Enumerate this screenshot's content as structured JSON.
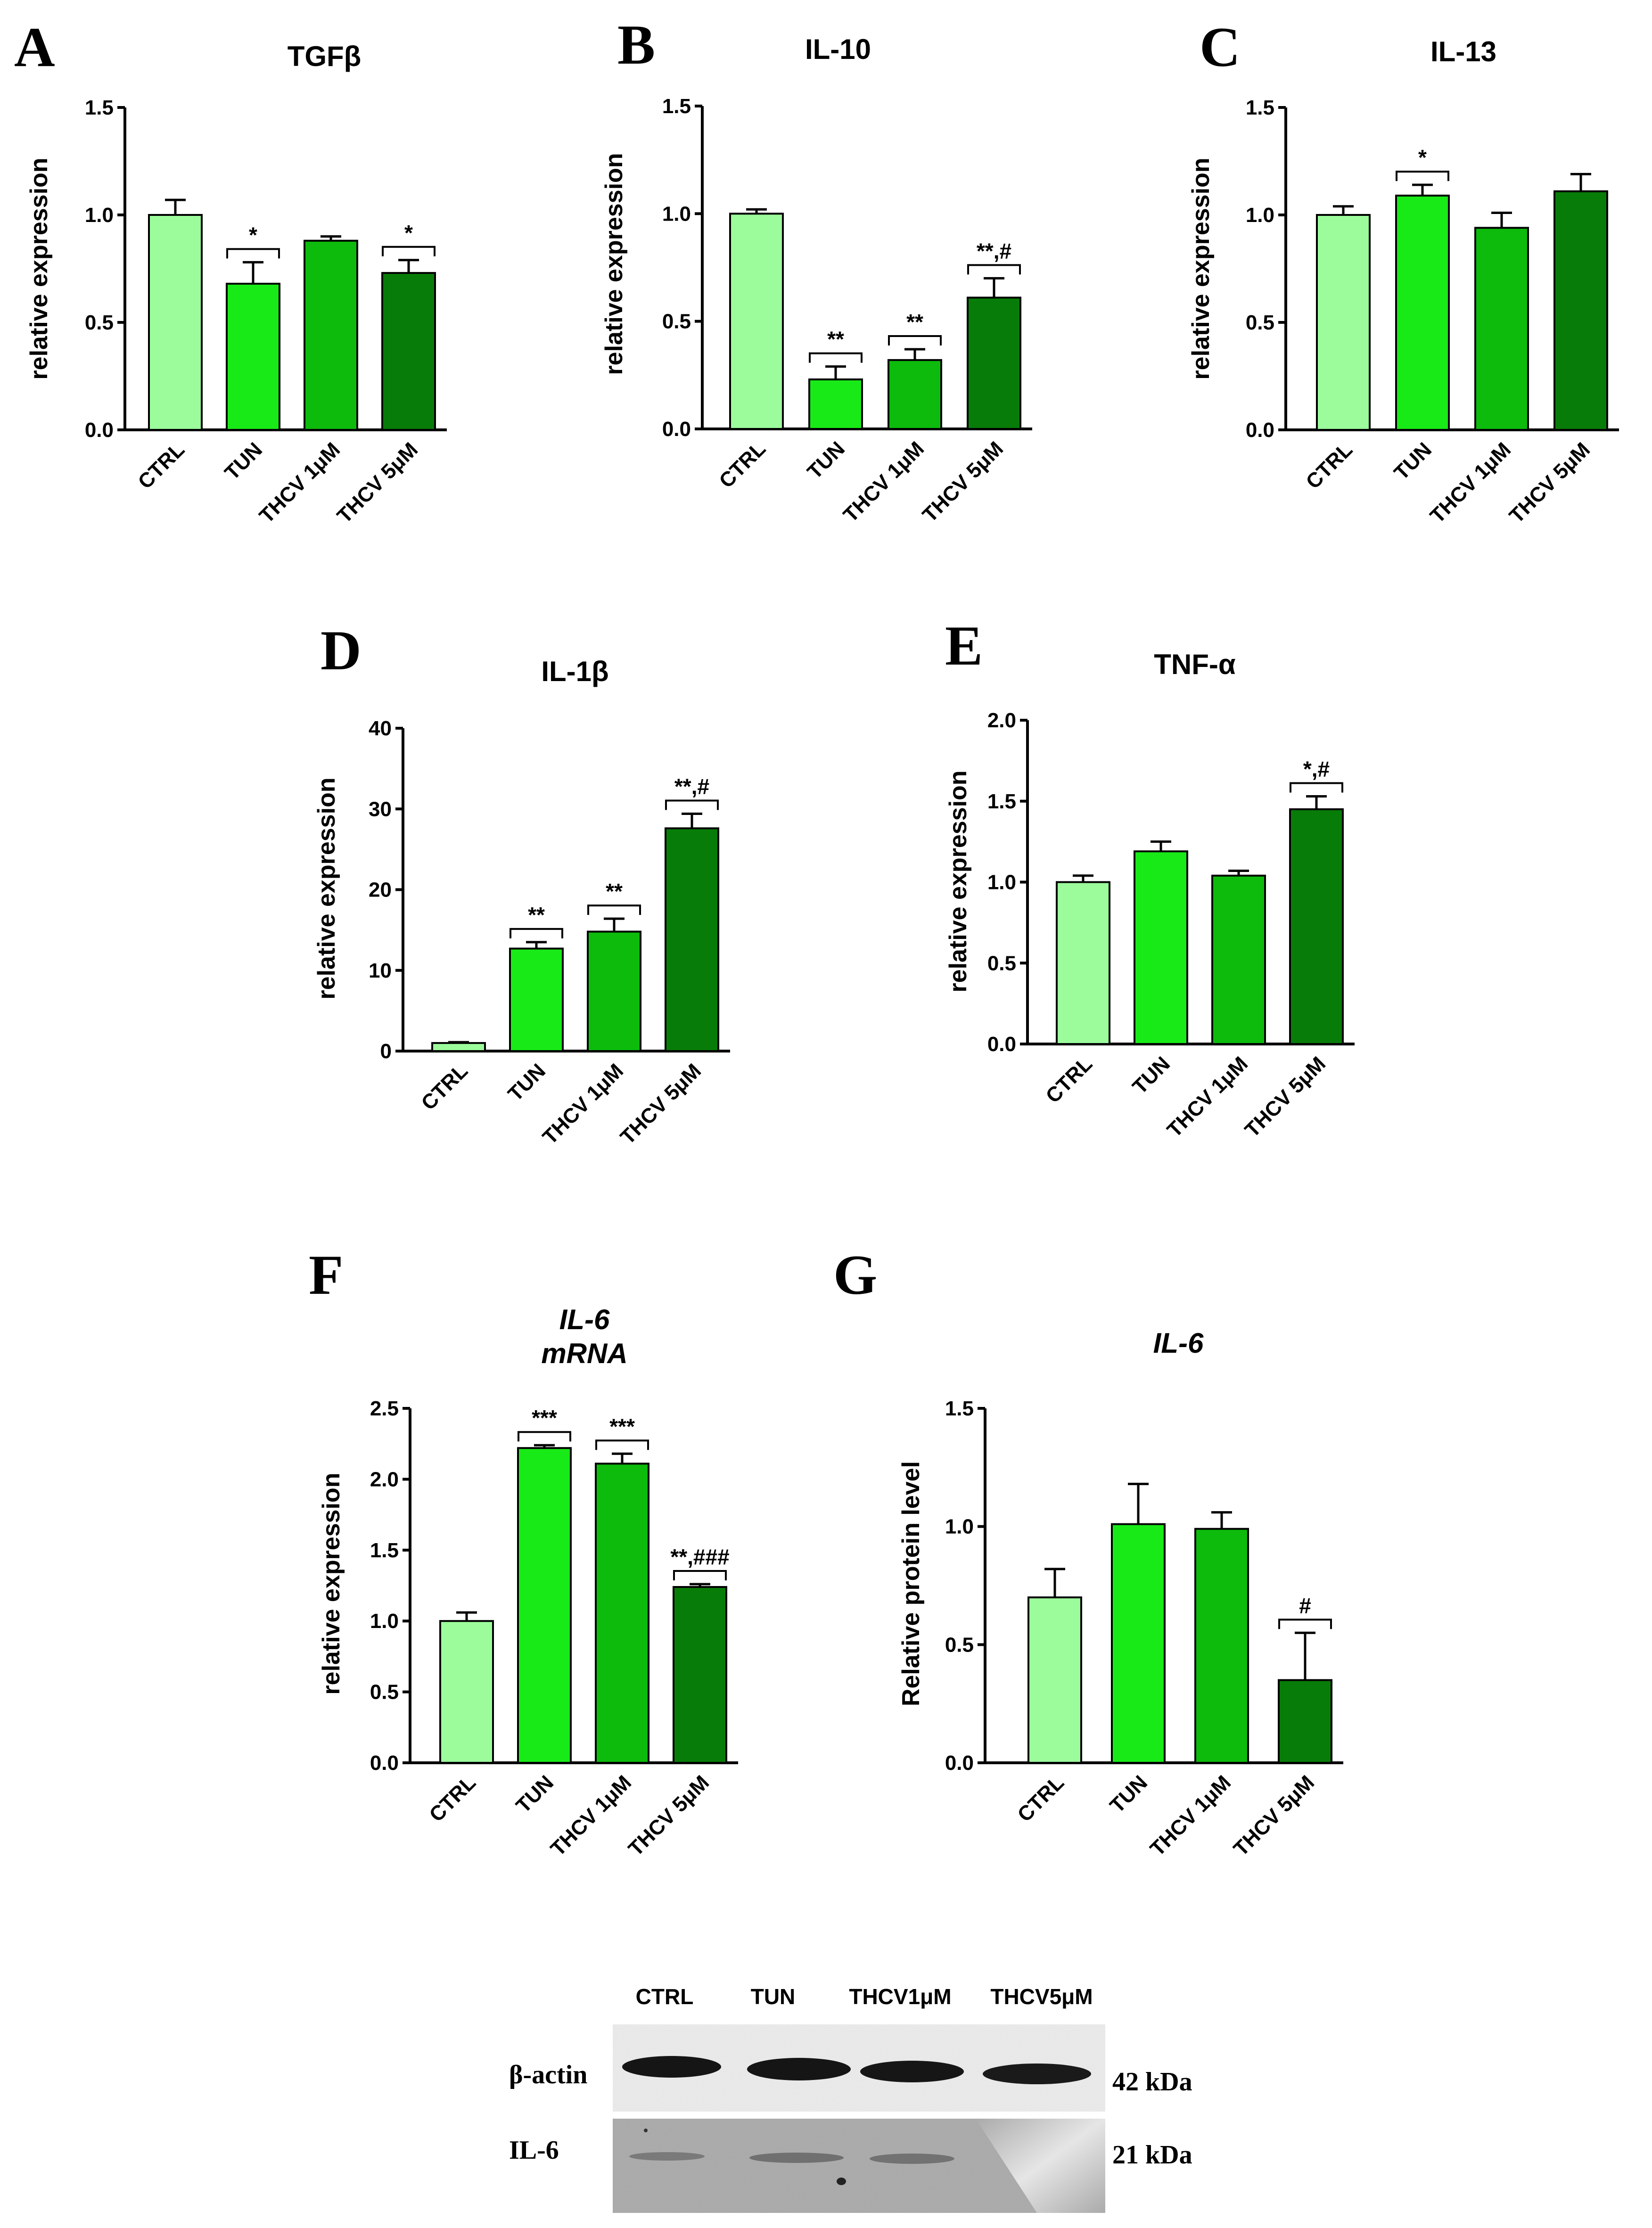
{
  "figure": {
    "colors": [
      "#9cfc9c",
      "#18ea18",
      "#0cbb0c",
      "#087c08"
    ],
    "bar_border": "#000000"
  },
  "chart_data": [
    {
      "panel": "A",
      "type": "bar",
      "title": "TGFβ",
      "title_italic": false,
      "ylabel": "relative expression",
      "ylim": [
        0,
        1.5
      ],
      "yticks": [
        "0.0",
        "0.5",
        "1.0",
        "1.5"
      ],
      "categories": [
        "CTRL",
        "TUN",
        "THCV 1μM",
        "THCV 5μM"
      ],
      "values": [
        1.0,
        0.68,
        0.88,
        0.73
      ],
      "errors": [
        0.07,
        0.1,
        0.02,
        0.06
      ],
      "annotations": [
        "",
        "*",
        "",
        "*"
      ]
    },
    {
      "panel": "B",
      "type": "bar",
      "title": "IL-10",
      "title_italic": false,
      "ylabel": "relative expression",
      "ylim": [
        0,
        1.5
      ],
      "yticks": [
        "0.0",
        "0.5",
        "1.0",
        "1.5"
      ],
      "categories": [
        "CTRL",
        "TUN",
        "THCV 1μM",
        "THCV 5μM"
      ],
      "values": [
        1.0,
        0.23,
        0.32,
        0.61
      ],
      "errors": [
        0.02,
        0.06,
        0.05,
        0.09
      ],
      "annotations": [
        "",
        "**",
        "**",
        "**,#"
      ]
    },
    {
      "panel": "C",
      "type": "bar",
      "title": "IL-13",
      "title_italic": false,
      "ylabel": "relative expression",
      "ylim": [
        0,
        1.5
      ],
      "yticks": [
        "0.0",
        "0.5",
        "1.0",
        "1.5"
      ],
      "categories": [
        "CTRL",
        "TUN",
        "THCV 1μM",
        "THCV 5μM"
      ],
      "values": [
        1.0,
        1.09,
        0.94,
        1.11
      ],
      "errors": [
        0.04,
        0.05,
        0.07,
        0.08
      ],
      "annotations": [
        "",
        "*",
        "",
        ""
      ]
    },
    {
      "panel": "D",
      "type": "bar",
      "title": "IL-1β",
      "title_italic": false,
      "ylabel": "relative expression",
      "ylim": [
        0,
        40
      ],
      "yticks": [
        "0",
        "10",
        "20",
        "30",
        "40"
      ],
      "categories": [
        "CTRL",
        "TUN",
        "THCV 1μM",
        "THCV 5μM"
      ],
      "values": [
        1.0,
        12.7,
        14.8,
        27.6
      ],
      "errors": [
        0.1,
        0.8,
        1.6,
        1.8
      ],
      "annotations": [
        "",
        "**",
        "**",
        "**,#"
      ]
    },
    {
      "panel": "E",
      "type": "bar",
      "title": "TNF-α",
      "title_italic": false,
      "ylabel": "relative expression",
      "ylim": [
        0,
        2.0
      ],
      "yticks": [
        "0.0",
        "0.5",
        "1.0",
        "1.5",
        "2.0"
      ],
      "categories": [
        "CTRL",
        "TUN",
        "THCV 1μM",
        "THCV 5μM"
      ],
      "values": [
        1.0,
        1.19,
        1.04,
        1.45
      ],
      "errors": [
        0.04,
        0.06,
        0.03,
        0.08
      ],
      "annotations": [
        "",
        "",
        "",
        "*,#"
      ]
    },
    {
      "panel": "F",
      "type": "bar",
      "title": "IL-6",
      "subtitle": "mRNA",
      "title_italic": true,
      "ylabel": "relative expression",
      "ylim": [
        0,
        2.5
      ],
      "yticks": [
        "0.0",
        "0.5",
        "1.0",
        "1.5",
        "2.0",
        "2.5"
      ],
      "categories": [
        "CTRL",
        "TUN",
        "THCV 1μM",
        "THCV 5μM"
      ],
      "values": [
        1.0,
        2.22,
        2.11,
        1.24
      ],
      "errors": [
        0.06,
        0.02,
        0.07,
        0.02
      ],
      "annotations": [
        "",
        "***",
        "***",
        "**,###"
      ]
    },
    {
      "panel": "G",
      "type": "bar",
      "title": "IL-6",
      "title_italic": true,
      "ylabel": "Relative protein level",
      "ylim": [
        0,
        1.5
      ],
      "yticks": [
        "0.0",
        "0.5",
        "1.0",
        "1.5"
      ],
      "categories": [
        "CTRL",
        "TUN",
        "THCV 1μM",
        "THCV 5μM"
      ],
      "values": [
        0.7,
        1.01,
        0.99,
        0.35
      ],
      "errors": [
        0.12,
        0.17,
        0.07,
        0.2
      ],
      "annotations": [
        "",
        "",
        "",
        "#"
      ]
    }
  ],
  "blot": {
    "lanes": [
      "CTRL",
      "TUN",
      "THCV1μM",
      "THCV5μM"
    ],
    "rows": [
      {
        "label": "β-actin",
        "size": "42 kDa"
      },
      {
        "label": "IL-6",
        "size": "21 kDa"
      }
    ]
  }
}
